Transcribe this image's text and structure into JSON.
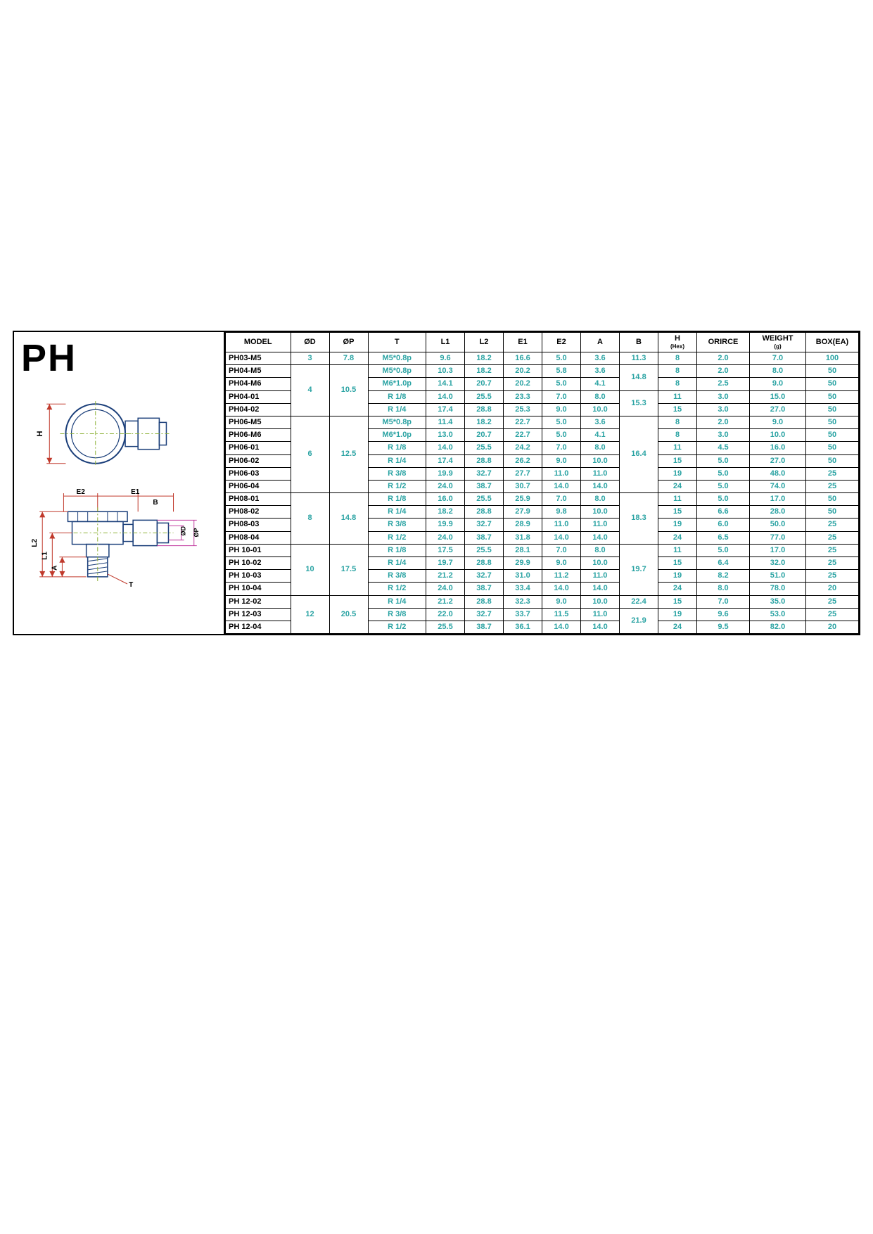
{
  "title": "PH",
  "colors": {
    "accent": "#2aa3a3",
    "dim_red": "#c0392b",
    "dim_magenta": "#c23da0",
    "outline_blue": "#1b3f7a",
    "center_green": "#8fb23a",
    "border": "#000000",
    "bg": "#ffffff"
  },
  "columns": [
    {
      "key": "model",
      "label": "MODEL"
    },
    {
      "key": "od",
      "label": "ØD"
    },
    {
      "key": "op",
      "label": "ØP"
    },
    {
      "key": "t",
      "label": "T"
    },
    {
      "key": "l1",
      "label": "L1"
    },
    {
      "key": "l2",
      "label": "L2"
    },
    {
      "key": "e1",
      "label": "E1"
    },
    {
      "key": "e2",
      "label": "E2"
    },
    {
      "key": "a",
      "label": "A"
    },
    {
      "key": "b",
      "label": "B"
    },
    {
      "key": "h",
      "label": "H",
      "sub": "(Hex)"
    },
    {
      "key": "orifice",
      "label": "ORIRCE"
    },
    {
      "key": "weight",
      "label": "WEIGHT",
      "sub": "(g)"
    },
    {
      "key": "box",
      "label": "BOX(EA)"
    }
  ],
  "groups": [
    {
      "od": "3",
      "op": "7.8",
      "b": "11.3",
      "rows": [
        {
          "model": "PH03-M5",
          "t": "M5*0.8p",
          "l1": "9.6",
          "l2": "18.2",
          "e1": "16.6",
          "e2": "5.0",
          "a": "3.6",
          "h": "8",
          "orifice": "2.0",
          "weight": "7.0",
          "box": "100"
        }
      ]
    },
    {
      "od": "4",
      "op": "10.5",
      "bGroups": [
        {
          "b": "14.8",
          "rows": [
            {
              "model": "PH04-M5",
              "t": "M5*0.8p",
              "l1": "10.3",
              "l2": "18.2",
              "e1": "20.2",
              "e2": "5.8",
              "a": "3.6",
              "h": "8",
              "orifice": "2.0",
              "weight": "8.0",
              "box": "50"
            },
            {
              "model": "PH04-M6",
              "t": "M6*1.0p",
              "l1": "14.1",
              "l2": "20.7",
              "e1": "20.2",
              "e2": "5.0",
              "a": "4.1",
              "h": "8",
              "orifice": "2.5",
              "weight": "9.0",
              "box": "50"
            }
          ]
        },
        {
          "b": "15.3",
          "rows": [
            {
              "model": "PH04-01",
              "t": "R 1/8",
              "l1": "14.0",
              "l2": "25.5",
              "e1": "23.3",
              "e2": "7.0",
              "a": "8.0",
              "h": "11",
              "orifice": "3.0",
              "weight": "15.0",
              "box": "50"
            },
            {
              "model": "PH04-02",
              "t": "R 1/4",
              "l1": "17.4",
              "l2": "28.8",
              "e1": "25.3",
              "e2": "9.0",
              "a": "10.0",
              "h": "15",
              "orifice": "3.0",
              "weight": "27.0",
              "box": "50"
            }
          ]
        }
      ]
    },
    {
      "od": "6",
      "op": "12.5",
      "b": "16.4",
      "rows": [
        {
          "model": "PH06-M5",
          "t": "M5*0.8p",
          "l1": "11.4",
          "l2": "18.2",
          "e1": "22.7",
          "e2": "5.0",
          "a": "3.6",
          "h": "8",
          "orifice": "2.0",
          "weight": "9.0",
          "box": "50"
        },
        {
          "model": "PH06-M6",
          "t": "M6*1.0p",
          "l1": "13.0",
          "l2": "20.7",
          "e1": "22.7",
          "e2": "5.0",
          "a": "4.1",
          "h": "8",
          "orifice": "3.0",
          "weight": "10.0",
          "box": "50"
        },
        {
          "model": "PH06-01",
          "t": "R 1/8",
          "l1": "14.0",
          "l2": "25.5",
          "e1": "24.2",
          "e2": "7.0",
          "a": "8.0",
          "h": "11",
          "orifice": "4.5",
          "weight": "16.0",
          "box": "50"
        },
        {
          "model": "PH06-02",
          "t": "R 1/4",
          "l1": "17.4",
          "l2": "28.8",
          "e1": "26.2",
          "e2": "9.0",
          "a": "10.0",
          "h": "15",
          "orifice": "5.0",
          "weight": "27.0",
          "box": "50"
        },
        {
          "model": "PH06-03",
          "t": "R 3/8",
          "l1": "19.9",
          "l2": "32.7",
          "e1": "27.7",
          "e2": "11.0",
          "a": "11.0",
          "h": "19",
          "orifice": "5.0",
          "weight": "48.0",
          "box": "25"
        },
        {
          "model": "PH06-04",
          "t": "R 1/2",
          "l1": "24.0",
          "l2": "38.7",
          "e1": "30.7",
          "e2": "14.0",
          "a": "14.0",
          "h": "24",
          "orifice": "5.0",
          "weight": "74.0",
          "box": "25"
        }
      ]
    },
    {
      "od": "8",
      "op": "14.8",
      "b": "18.3",
      "rows": [
        {
          "model": "PH08-01",
          "t": "R 1/8",
          "l1": "16.0",
          "l2": "25.5",
          "e1": "25.9",
          "e2": "7.0",
          "a": "8.0",
          "h": "11",
          "orifice": "5.0",
          "weight": "17.0",
          "box": "50"
        },
        {
          "model": "PH08-02",
          "t": "R 1/4",
          "l1": "18.2",
          "l2": "28.8",
          "e1": "27.9",
          "e2": "9.8",
          "a": "10.0",
          "h": "15",
          "orifice": "6.6",
          "weight": "28.0",
          "box": "50"
        },
        {
          "model": "PH08-03",
          "t": "R 3/8",
          "l1": "19.9",
          "l2": "32.7",
          "e1": "28.9",
          "e2": "11.0",
          "a": "11.0",
          "h": "19",
          "orifice": "6.0",
          "weight": "50.0",
          "box": "25"
        },
        {
          "model": "PH08-04",
          "t": "R 1/2",
          "l1": "24.0",
          "l2": "38.7",
          "e1": "31.8",
          "e2": "14.0",
          "a": "14.0",
          "h": "24",
          "orifice": "6.5",
          "weight": "77.0",
          "box": "25"
        }
      ]
    },
    {
      "od": "10",
      "op": "17.5",
      "b": "19.7",
      "rows": [
        {
          "model": "PH 10-01",
          "t": "R 1/8",
          "l1": "17.5",
          "l2": "25.5",
          "e1": "28.1",
          "e2": "7.0",
          "a": "8.0",
          "h": "11",
          "orifice": "5.0",
          "weight": "17.0",
          "box": "25"
        },
        {
          "model": "PH 10-02",
          "t": "R 1/4",
          "l1": "19.7",
          "l2": "28.8",
          "e1": "29.9",
          "e2": "9.0",
          "a": "10.0",
          "h": "15",
          "orifice": "6.4",
          "weight": "32.0",
          "box": "25"
        },
        {
          "model": "PH 10-03",
          "t": "R 3/8",
          "l1": "21.2",
          "l2": "32.7",
          "e1": "31.0",
          "e2": "11.2",
          "a": "11.0",
          "h": "19",
          "orifice": "8.2",
          "weight": "51.0",
          "box": "25"
        },
        {
          "model": "PH 10-04",
          "t": "R 1/2",
          "l1": "24.0",
          "l2": "38.7",
          "e1": "33.4",
          "e2": "14.0",
          "a": "14.0",
          "h": "24",
          "orifice": "8.0",
          "weight": "78.0",
          "box": "20"
        }
      ]
    },
    {
      "od": "12",
      "op": "20.5",
      "bGroups": [
        {
          "b": "22.4",
          "rows": [
            {
              "model": "PH 12-02",
              "t": "R 1/4",
              "l1": "21.2",
              "l2": "28.8",
              "e1": "32.3",
              "e2": "9.0",
              "a": "10.0",
              "h": "15",
              "orifice": "7.0",
              "weight": "35.0",
              "box": "25"
            }
          ]
        },
        {
          "b": "21.9",
          "rows": [
            {
              "model": "PH 12-03",
              "t": "R 3/8",
              "l1": "22.0",
              "l2": "32.7",
              "e1": "33.7",
              "e2": "11.5",
              "a": "11.0",
              "h": "19",
              "orifice": "9.6",
              "weight": "53.0",
              "box": "25"
            },
            {
              "model": "PH 12-04",
              "t": "R 1/2",
              "l1": "25.5",
              "l2": "38.7",
              "e1": "36.1",
              "e2": "14.0",
              "a": "14.0",
              "h": "24",
              "orifice": "9.5",
              "weight": "82.0",
              "box": "20"
            }
          ]
        }
      ]
    }
  ],
  "diagram": {
    "labels": {
      "H": "H",
      "E1": "E1",
      "E2": "E2",
      "B": "B",
      "L1": "L1",
      "L2": "L2",
      "A": "A",
      "T": "T",
      "OD": "ØD",
      "OP": "ØP"
    },
    "line_width": 1.2,
    "font_size": 10
  }
}
